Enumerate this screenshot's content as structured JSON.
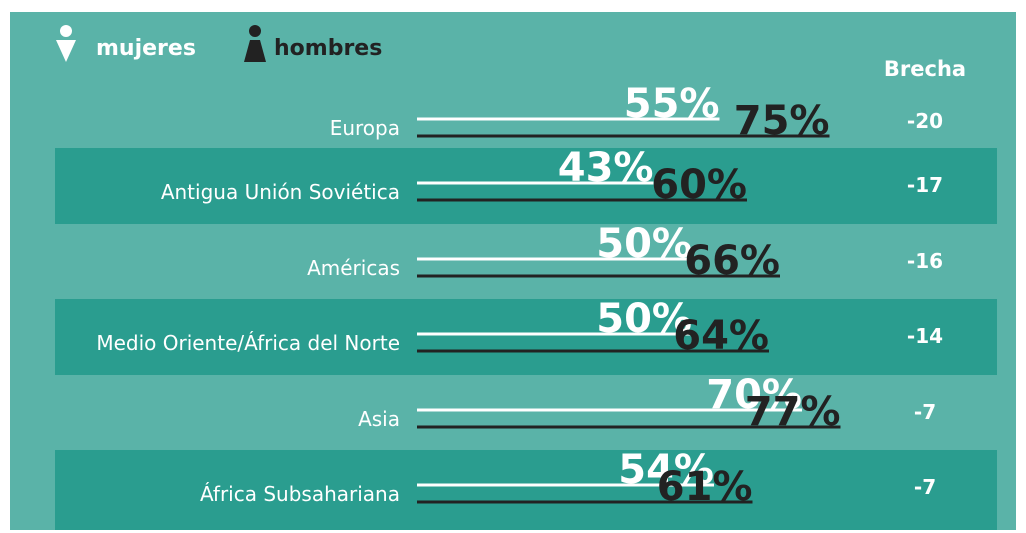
{
  "chart_data": {
    "type": "line-bar",
    "categories": [
      "Europa",
      "Antigua Unión Soviética",
      "Américas",
      "Medio Oriente/África del Norte",
      "Asia",
      "África Subsahariana"
    ],
    "series": [
      {
        "name": "mujeres",
        "color": "#ffffff",
        "values": [
          55,
          43,
          50,
          50,
          70,
          54
        ],
        "value_labels": [
          "55%",
          "43%",
          "50%",
          "50%",
          "70%",
          "54%"
        ]
      },
      {
        "name": "hombres",
        "color": "#222222",
        "values": [
          75,
          60,
          66,
          64,
          77,
          61
        ],
        "value_labels": [
          "75%",
          "60%",
          "66%",
          "64%",
          "77%",
          "61%"
        ]
      }
    ],
    "gap_label": "Brecha",
    "gap": [
      -20,
      -17,
      -16,
      -14,
      -7,
      -7
    ],
    "xlim": [
      0,
      80
    ]
  }
}
